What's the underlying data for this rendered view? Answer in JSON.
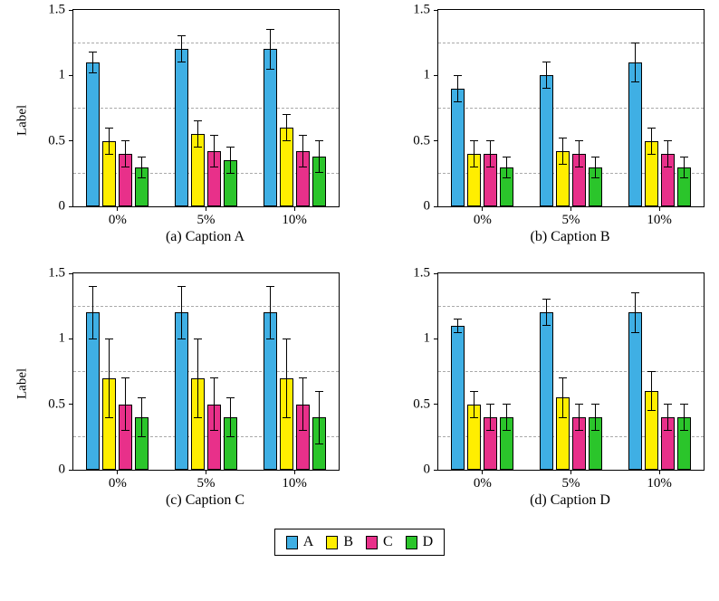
{
  "legend": {
    "items": [
      {
        "label": "A",
        "color": "#3FAFE4"
      },
      {
        "label": "B",
        "color": "#FFEE00"
      },
      {
        "label": "C",
        "color": "#E8308A"
      },
      {
        "label": "D",
        "color": "#2BC52B"
      }
    ]
  },
  "chart_data": [
    {
      "type": "bar",
      "caption": "(a) Caption A",
      "ylabel": "Label",
      "categories": [
        "0%",
        "5%",
        "10%"
      ],
      "ylim": [
        0,
        1.5
      ],
      "yticks": [
        {
          "v": 0,
          "label": "0"
        },
        {
          "v": 0.5,
          "label": "0.5"
        },
        {
          "v": 1,
          "label": "1"
        },
        {
          "v": 1.5,
          "label": "1.5"
        }
      ],
      "gridlines": [
        0.25,
        0.75,
        1.25
      ],
      "series": [
        {
          "name": "A",
          "color": "#3FAFE4",
          "values": [
            1.1,
            1.2,
            1.2
          ],
          "errors": [
            0.08,
            0.1,
            0.15
          ]
        },
        {
          "name": "B",
          "color": "#FFEE00",
          "values": [
            0.5,
            0.55,
            0.6
          ],
          "errors": [
            0.1,
            0.1,
            0.1
          ]
        },
        {
          "name": "C",
          "color": "#E8308A",
          "values": [
            0.4,
            0.42,
            0.42
          ],
          "errors": [
            0.1,
            0.12,
            0.12
          ]
        },
        {
          "name": "D",
          "color": "#2BC52B",
          "values": [
            0.3,
            0.35,
            0.38
          ],
          "errors": [
            0.08,
            0.1,
            0.12
          ]
        }
      ]
    },
    {
      "type": "bar",
      "caption": "(b) Caption B",
      "categories": [
        "0%",
        "5%",
        "10%"
      ],
      "ylim": [
        0,
        1.5
      ],
      "yticks": [
        {
          "v": 0,
          "label": "0"
        },
        {
          "v": 0.5,
          "label": "0.5"
        },
        {
          "v": 1,
          "label": "1"
        },
        {
          "v": 1.5,
          "label": "1.5"
        }
      ],
      "gridlines": [
        0.25,
        0.75,
        1.25
      ],
      "series": [
        {
          "name": "A",
          "color": "#3FAFE4",
          "values": [
            0.9,
            1.0,
            1.1
          ],
          "errors": [
            0.1,
            0.1,
            0.15
          ]
        },
        {
          "name": "B",
          "color": "#FFEE00",
          "values": [
            0.4,
            0.42,
            0.5
          ],
          "errors": [
            0.1,
            0.1,
            0.1
          ]
        },
        {
          "name": "C",
          "color": "#E8308A",
          "values": [
            0.4,
            0.4,
            0.4
          ],
          "errors": [
            0.1,
            0.1,
            0.1
          ]
        },
        {
          "name": "D",
          "color": "#2BC52B",
          "values": [
            0.3,
            0.3,
            0.3
          ],
          "errors": [
            0.08,
            0.08,
            0.08
          ]
        }
      ]
    },
    {
      "type": "bar",
      "caption": "(c) Caption C",
      "ylabel": "Label",
      "categories": [
        "0%",
        "5%",
        "10%"
      ],
      "ylim": [
        0,
        1.5
      ],
      "yticks": [
        {
          "v": 0,
          "label": "0"
        },
        {
          "v": 0.5,
          "label": "0.5"
        },
        {
          "v": 1,
          "label": "1"
        },
        {
          "v": 1.5,
          "label": "1.5"
        }
      ],
      "gridlines": [
        0.25,
        0.75,
        1.25
      ],
      "series": [
        {
          "name": "A",
          "color": "#3FAFE4",
          "values": [
            1.2,
            1.2,
            1.2
          ],
          "errors": [
            0.2,
            0.2,
            0.2
          ]
        },
        {
          "name": "B",
          "color": "#FFEE00",
          "values": [
            0.7,
            0.7,
            0.7
          ],
          "errors": [
            0.3,
            0.3,
            0.3
          ]
        },
        {
          "name": "C",
          "color": "#E8308A",
          "values": [
            0.5,
            0.5,
            0.5
          ],
          "errors": [
            0.2,
            0.2,
            0.2
          ]
        },
        {
          "name": "D",
          "color": "#2BC52B",
          "values": [
            0.4,
            0.4,
            0.4
          ],
          "errors": [
            0.15,
            0.15,
            0.2
          ]
        }
      ]
    },
    {
      "type": "bar",
      "caption": "(d) Caption D",
      "categories": [
        "0%",
        "5%",
        "10%"
      ],
      "ylim": [
        0,
        1.5
      ],
      "yticks": [
        {
          "v": 0,
          "label": "0"
        },
        {
          "v": 0.5,
          "label": "0.5"
        },
        {
          "v": 1,
          "label": "1"
        },
        {
          "v": 1.5,
          "label": "1.5"
        }
      ],
      "gridlines": [
        0.25,
        0.75,
        1.25
      ],
      "series": [
        {
          "name": "A",
          "color": "#3FAFE4",
          "values": [
            1.1,
            1.2,
            1.2
          ],
          "errors": [
            0.05,
            0.1,
            0.15
          ]
        },
        {
          "name": "B",
          "color": "#FFEE00",
          "values": [
            0.5,
            0.55,
            0.6
          ],
          "errors": [
            0.1,
            0.15,
            0.15
          ]
        },
        {
          "name": "C",
          "color": "#E8308A",
          "values": [
            0.4,
            0.4,
            0.4
          ],
          "errors": [
            0.1,
            0.1,
            0.1
          ]
        },
        {
          "name": "D",
          "color": "#2BC52B",
          "values": [
            0.4,
            0.4,
            0.4
          ],
          "errors": [
            0.1,
            0.1,
            0.1
          ]
        }
      ]
    }
  ]
}
